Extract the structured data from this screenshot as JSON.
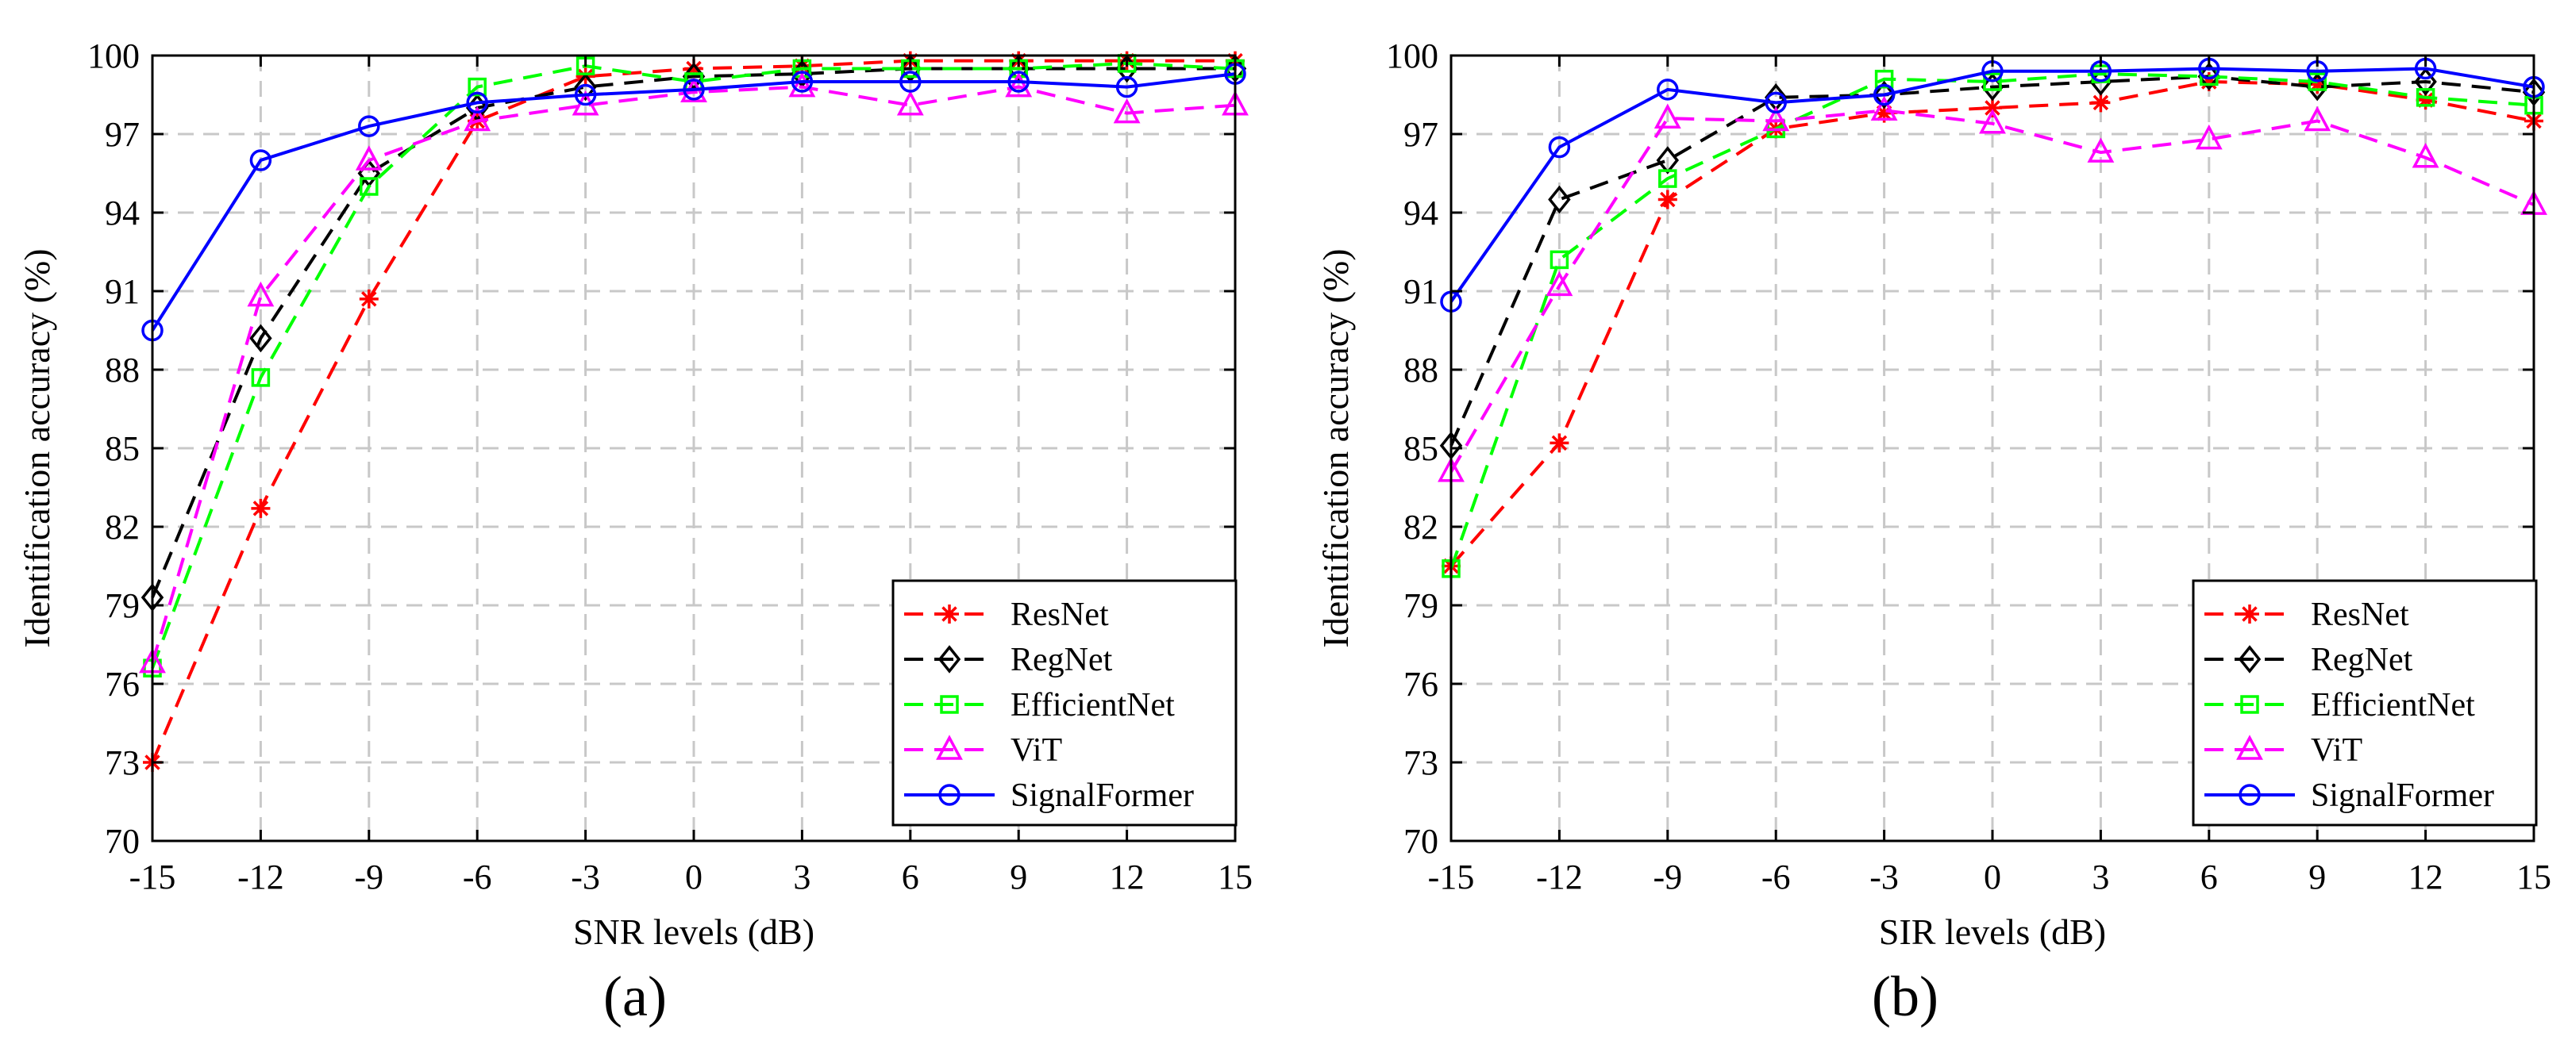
{
  "chart_data": [
    {
      "type": "line",
      "panel_label": "(a)",
      "xlabel": "SNR levels (dB)",
      "ylabel": "Identification accuracy (%)",
      "x": [
        -15,
        -12,
        -9,
        -6,
        -3,
        0,
        3,
        6,
        9,
        12,
        15
      ],
      "xticks": [
        "-15",
        "-12",
        "-9",
        "-6",
        "-3",
        "0",
        "3",
        "6",
        "9",
        "12",
        "15"
      ],
      "ylim": [
        70,
        100
      ],
      "yticks": [
        70,
        73,
        76,
        79,
        82,
        85,
        88,
        91,
        94,
        97,
        100
      ],
      "grid": true,
      "legend_position": "bottom-right",
      "series": [
        {
          "name": "ResNet",
          "color": "#ff0000",
          "marker": "asterisk",
          "dash": "dashed",
          "values": [
            73.0,
            82.7,
            90.7,
            97.5,
            99.2,
            99.5,
            99.6,
            99.8,
            99.8,
            99.8,
            99.8
          ]
        },
        {
          "name": "RegNet",
          "color": "#000000",
          "marker": "diamond",
          "dash": "dashed",
          "values": [
            79.3,
            89.2,
            95.5,
            98.0,
            98.8,
            99.2,
            99.3,
            99.5,
            99.5,
            99.5,
            99.5
          ]
        },
        {
          "name": "EfficientNet",
          "color": "#00ff00",
          "marker": "square",
          "dash": "dashed",
          "values": [
            76.6,
            87.7,
            95.0,
            98.8,
            99.6,
            99.0,
            99.5,
            99.5,
            99.5,
            99.7,
            99.5
          ]
        },
        {
          "name": "ViT",
          "color": "#ff00ff",
          "marker": "triangle",
          "dash": "dashed",
          "values": [
            76.8,
            90.8,
            96.0,
            97.5,
            98.1,
            98.6,
            98.8,
            98.1,
            98.8,
            97.8,
            98.1
          ]
        },
        {
          "name": "SignalFormer",
          "color": "#0000ff",
          "marker": "circle",
          "dash": "solid",
          "values": [
            89.5,
            96.0,
            97.3,
            98.2,
            98.5,
            98.7,
            99.0,
            99.0,
            99.0,
            98.8,
            99.3
          ]
        }
      ]
    },
    {
      "type": "line",
      "panel_label": "(b)",
      "xlabel": "SIR levels (dB)",
      "ylabel": "Identification accuracy (%)",
      "x": [
        -15,
        -12,
        -9,
        -6,
        -3,
        0,
        3,
        6,
        9,
        12,
        15
      ],
      "xticks": [
        "-15",
        "-12",
        "-9",
        "-6",
        "-3",
        "0",
        "3",
        "6",
        "9",
        "12",
        "15"
      ],
      "ylim": [
        70,
        100
      ],
      "yticks": [
        70,
        73,
        76,
        79,
        82,
        85,
        88,
        91,
        94,
        97,
        100
      ],
      "grid": true,
      "legend_position": "bottom-right",
      "series": [
        {
          "name": "ResNet",
          "color": "#ff0000",
          "marker": "asterisk",
          "dash": "dashed",
          "values": [
            80.5,
            85.2,
            94.5,
            97.2,
            97.8,
            98.0,
            98.2,
            99.0,
            98.9,
            98.3,
            97.5
          ]
        },
        {
          "name": "RegNet",
          "color": "#000000",
          "marker": "diamond",
          "dash": "dashed",
          "values": [
            85.1,
            94.5,
            96.0,
            98.4,
            98.5,
            98.8,
            99.0,
            99.2,
            98.8,
            99.0,
            98.6
          ]
        },
        {
          "name": "EfficientNet",
          "color": "#00ff00",
          "marker": "square",
          "dash": "dashed",
          "values": [
            80.4,
            92.2,
            95.3,
            97.2,
            99.1,
            99.0,
            99.3,
            99.2,
            99.0,
            98.4,
            98.1
          ]
        },
        {
          "name": "ViT",
          "color": "#ff00ff",
          "marker": "triangle",
          "dash": "dashed",
          "values": [
            84.1,
            91.2,
            97.6,
            97.5,
            97.9,
            97.4,
            96.3,
            96.8,
            97.5,
            96.1,
            94.3
          ]
        },
        {
          "name": "SignalFormer",
          "color": "#0000ff",
          "marker": "circle",
          "dash": "solid",
          "values": [
            90.6,
            96.5,
            98.7,
            98.2,
            98.5,
            99.4,
            99.4,
            99.5,
            99.4,
            99.5,
            98.8
          ]
        }
      ]
    }
  ]
}
